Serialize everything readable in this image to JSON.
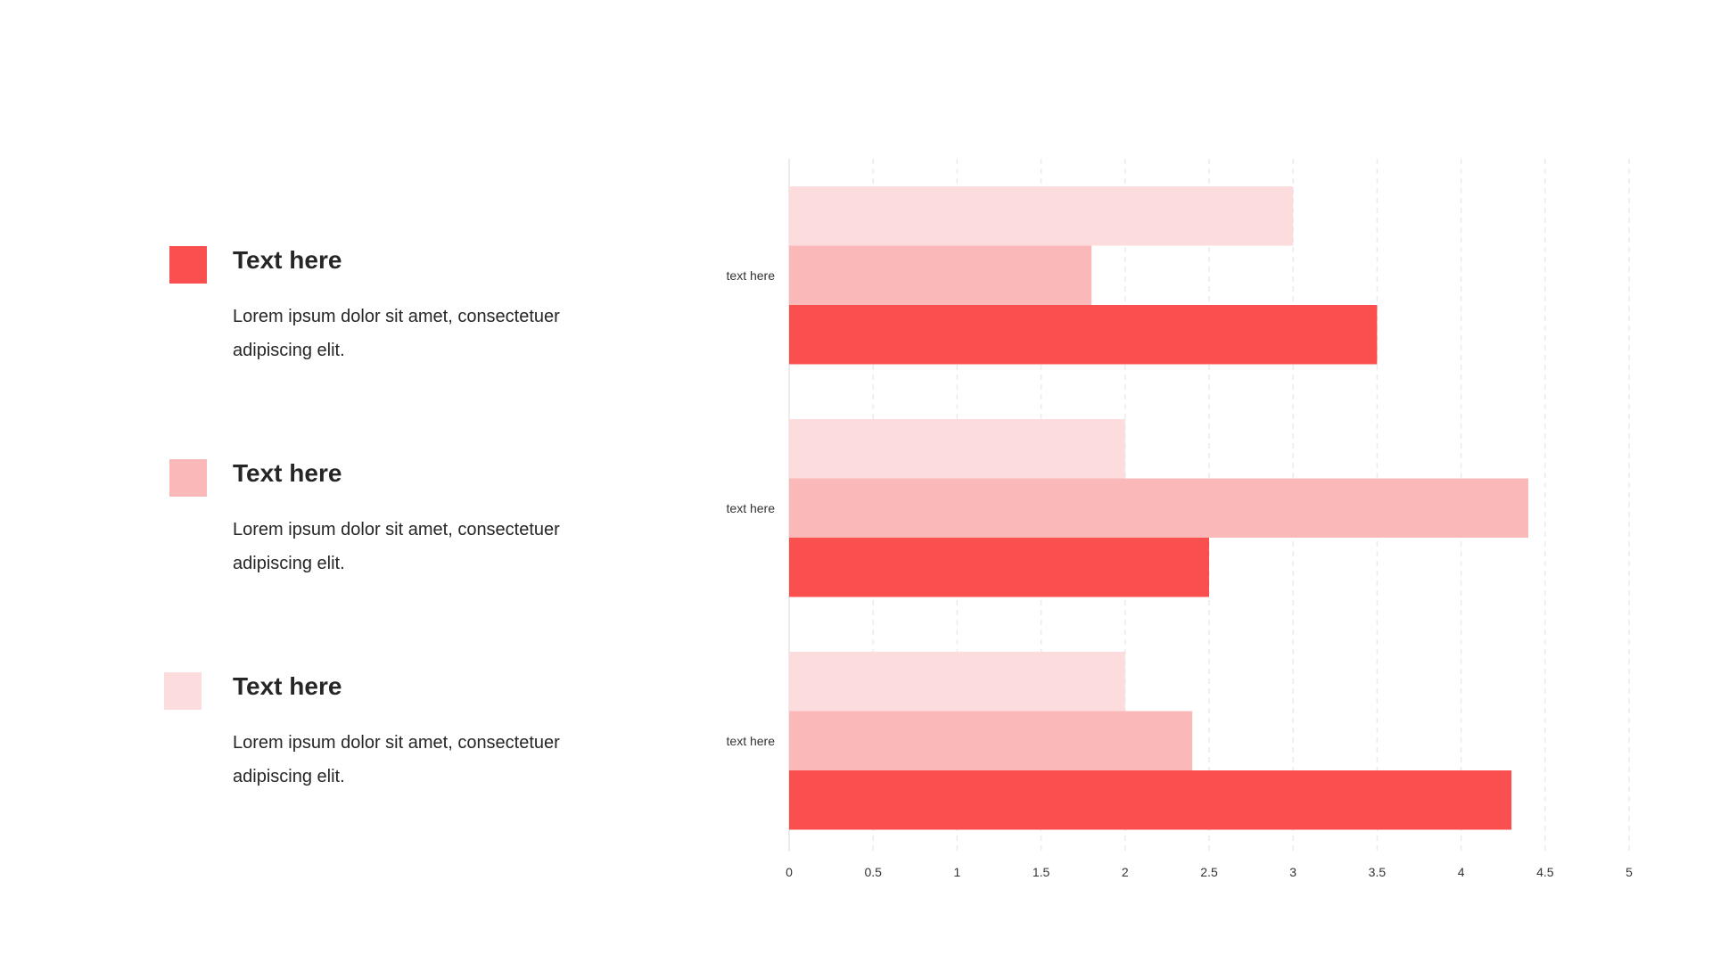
{
  "legend": [
    {
      "title": "Text here",
      "body": "Lorem ipsum dolor sit amet, consectetuer adipiscing elit.",
      "color": "#F94F4F"
    },
    {
      "title": "Text here",
      "body": "Lorem ipsum dolor sit amet, consectetuer adipiscing elit.",
      "color": "#FAB8B8"
    },
    {
      "title": "Text here",
      "body": "Lorem ipsum dolor sit amet, consectetuer adipiscing elit.",
      "color": "#FCDCDC"
    }
  ],
  "chart_data": {
    "type": "bar",
    "orientation": "horizontal",
    "categories": [
      "text here",
      "text here",
      "text here"
    ],
    "series": [
      {
        "color": "#FCDCDC",
        "values": [
          3,
          2,
          2
        ]
      },
      {
        "color": "#FAB8B8",
        "values": [
          1.8,
          4.4,
          2.4
        ]
      },
      {
        "color": "#F94F4F",
        "values": [
          3.5,
          2.5,
          4.3
        ]
      }
    ],
    "xlim": [
      0,
      5
    ],
    "xticks": [
      "0",
      "0.5",
      "1",
      "1.5",
      "2",
      "2.5",
      "3",
      "3.5",
      "4",
      "4.5",
      "5"
    ],
    "grid": true,
    "gridline_color": "#EBEBEB"
  }
}
